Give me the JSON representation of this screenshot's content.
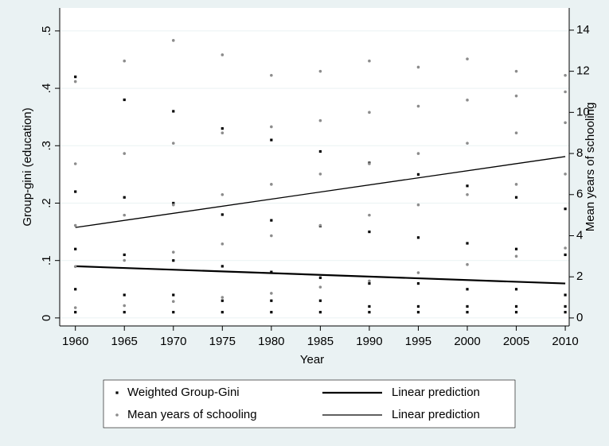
{
  "chart_data": {
    "type": "scatter",
    "xlabel": "Year",
    "ylabel": "Group-gini (education)",
    "y2label": "Mean years of schooling",
    "xlim": [
      1958.4,
      2010.4
    ],
    "xticks": [
      1960,
      1965,
      1970,
      1975,
      1980,
      1985,
      1990,
      1995,
      2000,
      2005,
      2010
    ],
    "ylim": [
      -0.014,
      0.54
    ],
    "yticks": [
      0,
      {
        "value": 0.1,
        "label": ".1"
      },
      {
        "value": 0.2,
        "label": ".2"
      },
      {
        "value": 0.3,
        "label": ".3"
      },
      {
        "value": 0.4,
        "label": ".4"
      },
      {
        "value": 0.5,
        "label": ".5"
      }
    ],
    "y2lim": [
      -0.39,
      15.08
    ],
    "y2ticks": [
      0,
      2,
      4,
      6,
      8,
      10,
      12,
      14
    ],
    "grid": true,
    "legend": "bottom",
    "series": [
      {
        "name": "Weighted Group-Gini",
        "type": "scatter",
        "color": "#000000",
        "x": [
          1960,
          1960,
          1960,
          1960,
          1960,
          1965,
          1965,
          1965,
          1965,
          1965,
          1970,
          1970,
          1970,
          1970,
          1970,
          1975,
          1975,
          1975,
          1975,
          1975,
          1980,
          1980,
          1980,
          1980,
          1980,
          1985,
          1985,
          1985,
          1985,
          1985,
          1990,
          1990,
          1990,
          1990,
          1990,
          1995,
          1995,
          1995,
          1995,
          1995,
          2000,
          2000,
          2000,
          2000,
          2000,
          2005,
          2005,
          2005,
          2005,
          2005,
          2010,
          2010,
          2010,
          2010,
          2010
        ],
        "values": [
          0.01,
          0.05,
          0.12,
          0.22,
          0.42,
          0.01,
          0.04,
          0.11,
          0.21,
          0.38,
          0.01,
          0.04,
          0.1,
          0.2,
          0.36,
          0.01,
          0.03,
          0.09,
          0.18,
          0.33,
          0.01,
          0.03,
          0.08,
          0.17,
          0.31,
          0.01,
          0.03,
          0.07,
          0.16,
          0.29,
          0.01,
          0.02,
          0.06,
          0.15,
          0.27,
          0.01,
          0.02,
          0.06,
          0.14,
          0.25,
          0.01,
          0.02,
          0.05,
          0.13,
          0.23,
          0.01,
          0.02,
          0.05,
          0.12,
          0.21,
          0.01,
          0.02,
          0.04,
          0.11,
          0.19
        ]
      },
      {
        "name": "Linear prediction",
        "type": "line",
        "color": "#000000",
        "x": [
          1960,
          2010
        ],
        "values": [
          0.09,
          0.06
        ]
      },
      {
        "name": "Mean years of schooling",
        "type": "scatter",
        "color": "#8c8c8c",
        "axis": "y2",
        "x": [
          1960,
          1960,
          1960,
          1960,
          1960,
          1965,
          1965,
          1965,
          1965,
          1965,
          1970,
          1970,
          1970,
          1970,
          1970,
          1975,
          1975,
          1975,
          1975,
          1975,
          1980,
          1980,
          1980,
          1980,
          1980,
          1985,
          1985,
          1985,
          1985,
          1985,
          1990,
          1990,
          1990,
          1990,
          1990,
          1995,
          1995,
          1995,
          1995,
          1995,
          2000,
          2000,
          2000,
          2000,
          2000,
          2005,
          2005,
          2005,
          2005,
          2005,
          2010,
          2010,
          2010,
          2010,
          2010
        ],
        "values": [
          0.5,
          2.5,
          4.5,
          7.5,
          11.5,
          0.6,
          2.8,
          5,
          8,
          12.5,
          0.8,
          3.2,
          5.5,
          8.5,
          13.5,
          1,
          3.6,
          6,
          9,
          12.8,
          1.2,
          4,
          6.5,
          9.3,
          11.8,
          1.5,
          4.5,
          7,
          9.6,
          12,
          1.8,
          5,
          7.5,
          10,
          12.5,
          2.2,
          5.5,
          8,
          10.3,
          12.2,
          2.6,
          6,
          8.5,
          10.6,
          12.6,
          3,
          6.5,
          9,
          10.8,
          12,
          3.4,
          7,
          9.5,
          11,
          11.8
        ]
      },
      {
        "name": "Linear prediction",
        "type": "line",
        "color": "#000000",
        "axis": "y2",
        "x": [
          1960,
          2010
        ],
        "values": [
          4.4,
          7.85
        ]
      }
    ]
  }
}
